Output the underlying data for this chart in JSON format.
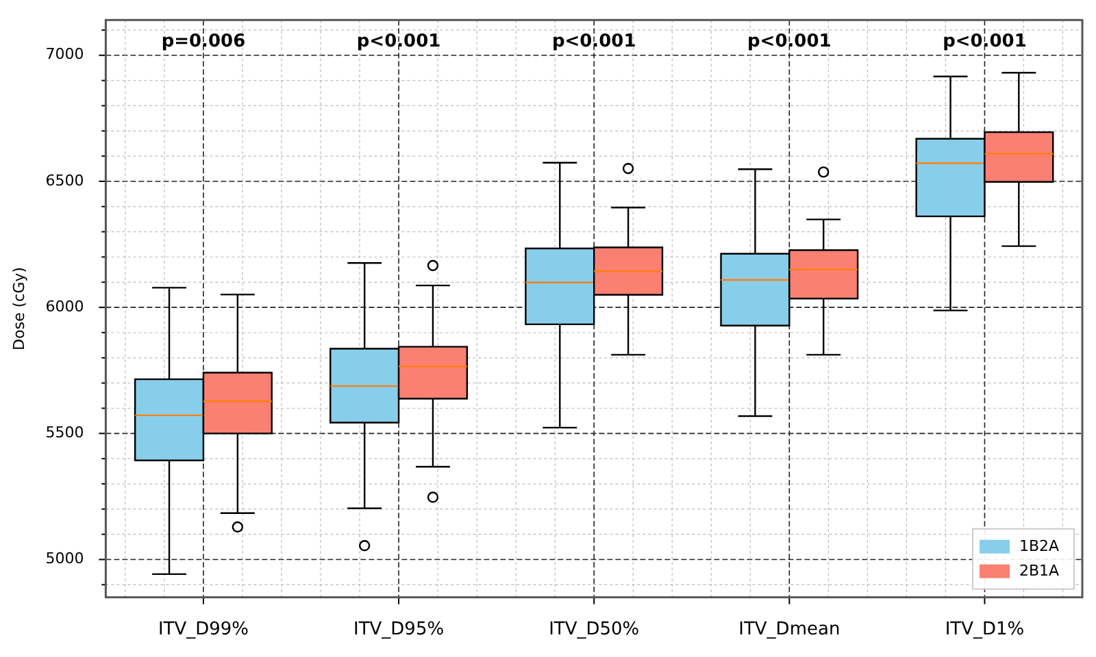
{
  "chart_data": {
    "type": "box",
    "ylabel": "Dose (cGy)",
    "categories": [
      "ITV_D99%",
      "ITV_D95%",
      "ITV_D50%",
      "ITV_Dmean",
      "ITV_D1%"
    ],
    "series": [
      {
        "name": "1B2A",
        "color": "#87ceeb",
        "boxes": [
          {
            "low": 4942,
            "q1": 5393,
            "median": 5572,
            "q3": 5715,
            "high": 6078
          },
          {
            "low": 5203,
            "q1": 5543,
            "median": 5688,
            "q3": 5836,
            "high": 6176,
            "outliers": [
              5055
            ]
          },
          {
            "low": 5523,
            "q1": 5933,
            "median": 6099,
            "q3": 6234,
            "high": 6574
          },
          {
            "low": 5569,
            "q1": 5928,
            "median": 6109,
            "q3": 6213,
            "high": 6548
          },
          {
            "low": 5988,
            "q1": 6361,
            "median": 6572,
            "q3": 6669,
            "high": 6916
          }
        ]
      },
      {
        "name": "2B1A",
        "color": "#fa8072",
        "boxes": [
          {
            "low": 5184,
            "q1": 5500,
            "median": 5627,
            "q3": 5741,
            "high": 6051,
            "outliers": [
              5129
            ]
          },
          {
            "low": 5368,
            "q1": 5638,
            "median": 5766,
            "q3": 5844,
            "high": 6087,
            "outliers": [
              5247,
              6166
            ]
          },
          {
            "low": 5812,
            "q1": 6050,
            "median": 6143,
            "q3": 6238,
            "high": 6396,
            "outliers": [
              6551
            ]
          },
          {
            "low": 5812,
            "q1": 6035,
            "median": 6150,
            "q3": 6227,
            "high": 6349,
            "outliers": [
              6537
            ]
          },
          {
            "low": 6243,
            "q1": 6498,
            "median": 6609,
            "q3": 6695,
            "high": 6931
          }
        ]
      }
    ],
    "ylim": [
      4850,
      7140
    ],
    "yticks": [
      {
        "value": 4900,
        "label": null
      },
      5000,
      {
        "value": 5100,
        "label": null
      },
      {
        "value": 5200,
        "label": null
      },
      {
        "value": 5300,
        "label": null
      },
      {
        "value": 5400,
        "label": null
      },
      5500,
      {
        "value": 5600,
        "label": null
      },
      {
        "value": 5700,
        "label": null
      },
      {
        "value": 5800,
        "label": null
      },
      {
        "value": 5900,
        "label": null
      },
      6000,
      {
        "value": 6100,
        "label": null
      },
      {
        "value": 6200,
        "label": null
      },
      {
        "value": 6300,
        "label": null
      },
      {
        "value": 6400,
        "label": null
      },
      6500,
      {
        "value": 6600,
        "label": null
      },
      {
        "value": 6700,
        "label": null
      },
      {
        "value": 6800,
        "label": null
      },
      {
        "value": 6900,
        "label": null
      },
      7000,
      {
        "value": 7100,
        "label": null
      }
    ],
    "annotations": [
      "p=0.006",
      "p<0.001",
      "p<0.001",
      "p<0.001",
      "p<0.001"
    ],
    "grid": true,
    "legend": "bottom right"
  }
}
